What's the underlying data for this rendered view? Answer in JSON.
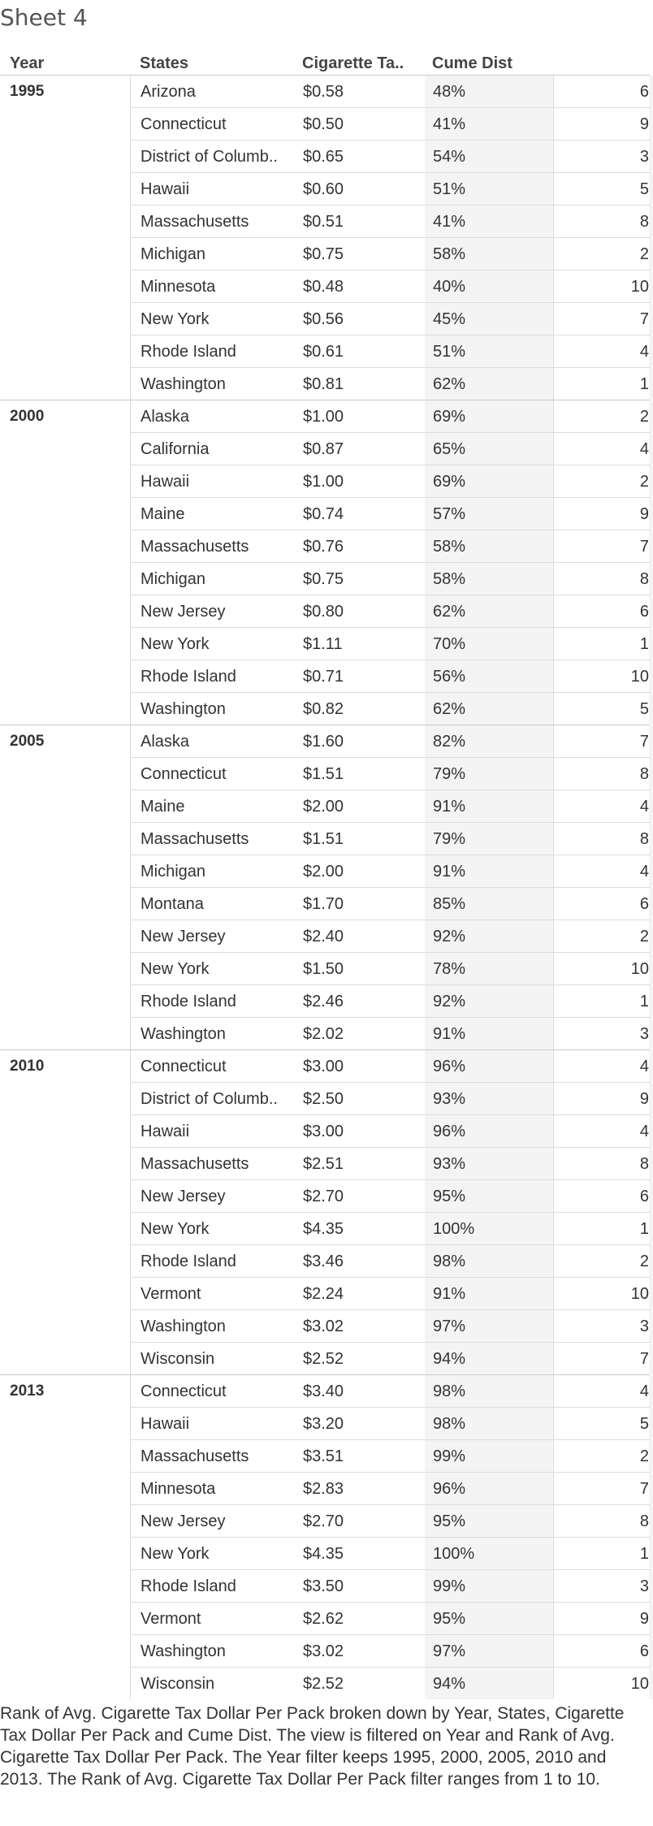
{
  "sheet_title": "Sheet 4",
  "headers": {
    "year": "Year",
    "states": "States",
    "tax": "Cigarette Ta..",
    "cume": "Cume Dist"
  },
  "groups": [
    {
      "year": "1995",
      "rows": [
        {
          "state": "Arizona",
          "tax": "$0.58",
          "cume": "48%",
          "rank": "6"
        },
        {
          "state": "Connecticut",
          "tax": "$0.50",
          "cume": "41%",
          "rank": "9"
        },
        {
          "state": "District of Columb..",
          "tax": "$0.65",
          "cume": "54%",
          "rank": "3"
        },
        {
          "state": "Hawaii",
          "tax": "$0.60",
          "cume": "51%",
          "rank": "5"
        },
        {
          "state": "Massachusetts",
          "tax": "$0.51",
          "cume": "41%",
          "rank": "8"
        },
        {
          "state": "Michigan",
          "tax": "$0.75",
          "cume": "58%",
          "rank": "2"
        },
        {
          "state": "Minnesota",
          "tax": "$0.48",
          "cume": "40%",
          "rank": "10"
        },
        {
          "state": "New York",
          "tax": "$0.56",
          "cume": "45%",
          "rank": "7"
        },
        {
          "state": "Rhode Island",
          "tax": "$0.61",
          "cume": "51%",
          "rank": "4"
        },
        {
          "state": "Washington",
          "tax": "$0.81",
          "cume": "62%",
          "rank": "1"
        }
      ]
    },
    {
      "year": "2000",
      "rows": [
        {
          "state": "Alaska",
          "tax": "$1.00",
          "cume": "69%",
          "rank": "2"
        },
        {
          "state": "California",
          "tax": "$0.87",
          "cume": "65%",
          "rank": "4"
        },
        {
          "state": "Hawaii",
          "tax": "$1.00",
          "cume": "69%",
          "rank": "2"
        },
        {
          "state": "Maine",
          "tax": "$0.74",
          "cume": "57%",
          "rank": "9"
        },
        {
          "state": "Massachusetts",
          "tax": "$0.76",
          "cume": "58%",
          "rank": "7"
        },
        {
          "state": "Michigan",
          "tax": "$0.75",
          "cume": "58%",
          "rank": "8"
        },
        {
          "state": "New Jersey",
          "tax": "$0.80",
          "cume": "62%",
          "rank": "6"
        },
        {
          "state": "New York",
          "tax": "$1.11",
          "cume": "70%",
          "rank": "1"
        },
        {
          "state": "Rhode Island",
          "tax": "$0.71",
          "cume": "56%",
          "rank": "10"
        },
        {
          "state": "Washington",
          "tax": "$0.82",
          "cume": "62%",
          "rank": "5"
        }
      ]
    },
    {
      "year": "2005",
      "rows": [
        {
          "state": "Alaska",
          "tax": "$1.60",
          "cume": "82%",
          "rank": "7"
        },
        {
          "state": "Connecticut",
          "tax": "$1.51",
          "cume": "79%",
          "rank": "8"
        },
        {
          "state": "Maine",
          "tax": "$2.00",
          "cume": "91%",
          "rank": "4"
        },
        {
          "state": "Massachusetts",
          "tax": "$1.51",
          "cume": "79%",
          "rank": "8"
        },
        {
          "state": "Michigan",
          "tax": "$2.00",
          "cume": "91%",
          "rank": "4"
        },
        {
          "state": "Montana",
          "tax": "$1.70",
          "cume": "85%",
          "rank": "6"
        },
        {
          "state": "New Jersey",
          "tax": "$2.40",
          "cume": "92%",
          "rank": "2"
        },
        {
          "state": "New York",
          "tax": "$1.50",
          "cume": "78%",
          "rank": "10"
        },
        {
          "state": "Rhode Island",
          "tax": "$2.46",
          "cume": "92%",
          "rank": "1"
        },
        {
          "state": "Washington",
          "tax": "$2.02",
          "cume": "91%",
          "rank": "3"
        }
      ]
    },
    {
      "year": "2010",
      "rows": [
        {
          "state": "Connecticut",
          "tax": "$3.00",
          "cume": "96%",
          "rank": "4"
        },
        {
          "state": "District of Columb..",
          "tax": "$2.50",
          "cume": "93%",
          "rank": "9"
        },
        {
          "state": "Hawaii",
          "tax": "$3.00",
          "cume": "96%",
          "rank": "4"
        },
        {
          "state": "Massachusetts",
          "tax": "$2.51",
          "cume": "93%",
          "rank": "8"
        },
        {
          "state": "New Jersey",
          "tax": "$2.70",
          "cume": "95%",
          "rank": "6"
        },
        {
          "state": "New York",
          "tax": "$4.35",
          "cume": "100%",
          "rank": "1"
        },
        {
          "state": "Rhode Island",
          "tax": "$3.46",
          "cume": "98%",
          "rank": "2"
        },
        {
          "state": "Vermont",
          "tax": "$2.24",
          "cume": "91%",
          "rank": "10"
        },
        {
          "state": "Washington",
          "tax": "$3.02",
          "cume": "97%",
          "rank": "3"
        },
        {
          "state": "Wisconsin",
          "tax": "$2.52",
          "cume": "94%",
          "rank": "7"
        }
      ]
    },
    {
      "year": "2013",
      "rows": [
        {
          "state": "Connecticut",
          "tax": "$3.40",
          "cume": "98%",
          "rank": "4"
        },
        {
          "state": "Hawaii",
          "tax": "$3.20",
          "cume": "98%",
          "rank": "5"
        },
        {
          "state": "Massachusetts",
          "tax": "$3.51",
          "cume": "99%",
          "rank": "2"
        },
        {
          "state": "Minnesota",
          "tax": "$2.83",
          "cume": "96%",
          "rank": "7"
        },
        {
          "state": "New Jersey",
          "tax": "$2.70",
          "cume": "95%",
          "rank": "8"
        },
        {
          "state": "New York",
          "tax": "$4.35",
          "cume": "100%",
          "rank": "1"
        },
        {
          "state": "Rhode Island",
          "tax": "$3.50",
          "cume": "99%",
          "rank": "3"
        },
        {
          "state": "Vermont",
          "tax": "$2.62",
          "cume": "95%",
          "rank": "9"
        },
        {
          "state": "Washington",
          "tax": "$3.02",
          "cume": "97%",
          "rank": "6"
        },
        {
          "state": "Wisconsin",
          "tax": "$2.52",
          "cume": "94%",
          "rank": "10"
        }
      ]
    }
  ],
  "footer": "Rank of Avg. Cigarette Tax Dollar Per Pack broken down by Year, States, Cigarette Tax Dollar Per Pack and Cume Dist.  The view is filtered on Year and Rank of Avg. Cigarette Tax Dollar Per Pack. The Year filter keeps 1995, 2000, 2005, 2010 and 2013. The Rank of Avg. Cigarette Tax Dollar Per Pack filter ranges from 1 to 10."
}
